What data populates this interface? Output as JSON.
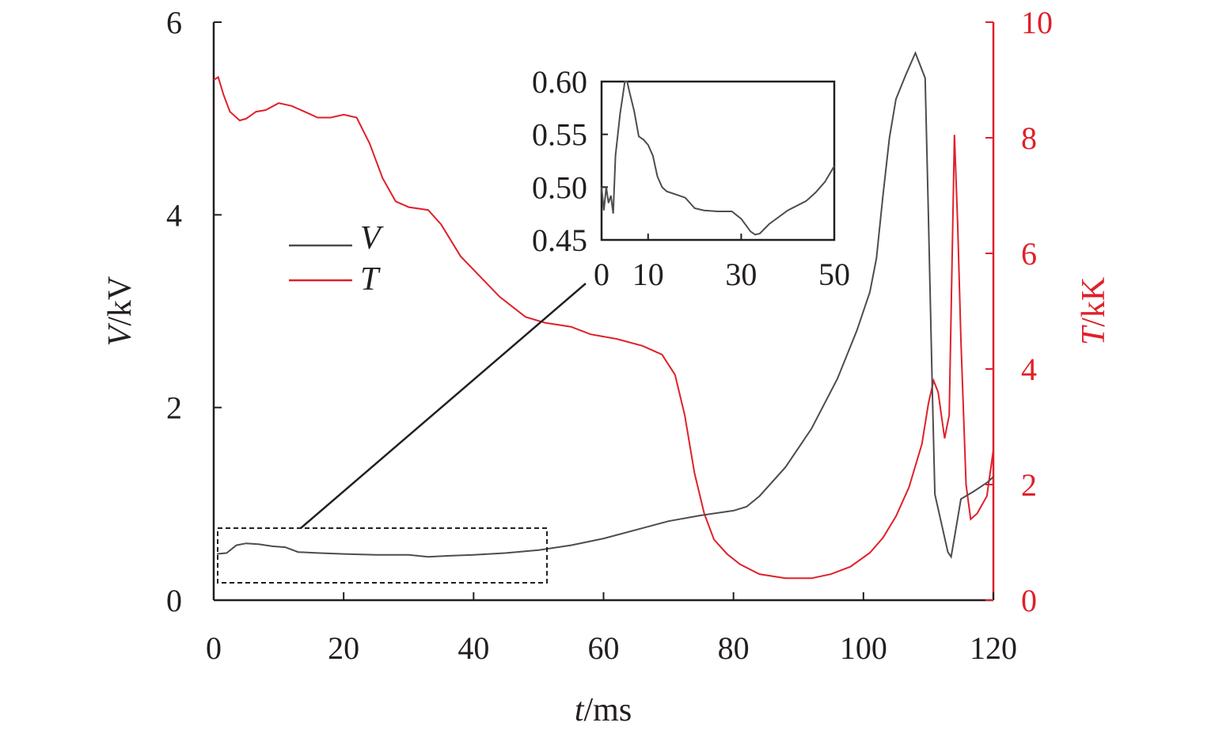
{
  "chart_data": {
    "type": "line",
    "main": {
      "xlabel_var": "t",
      "xlabel_unit": "/ms",
      "ylabel_left_var": "V",
      "ylabel_left_unit": "/kV",
      "ylabel_right_var": "T",
      "ylabel_right_unit": "/kK",
      "xlim": [
        0,
        120
      ],
      "ylim_left": [
        0,
        6
      ],
      "ylim_right": [
        0,
        10
      ],
      "x_ticks": [
        "0",
        "20",
        "40",
        "60",
        "80",
        "100",
        "120"
      ],
      "y_left_ticks": [
        "0",
        "2",
        "4",
        "6"
      ],
      "y_right_ticks": [
        "0",
        "2",
        "4",
        "6",
        "8",
        "10"
      ],
      "grid": false,
      "legend_position": "upper-left",
      "series": [
        {
          "name": "V",
          "axis": "left",
          "color": "#4d4d4f",
          "points": [
            [
              0.5,
              0.48
            ],
            [
              2,
              0.49
            ],
            [
              3.5,
              0.57
            ],
            [
              5,
              0.59
            ],
            [
              7,
              0.58
            ],
            [
              9,
              0.56
            ],
            [
              11,
              0.55
            ],
            [
              13,
              0.5
            ],
            [
              16,
              0.49
            ],
            [
              20,
              0.48
            ],
            [
              25,
              0.47
            ],
            [
              30,
              0.47
            ],
            [
              33,
              0.45
            ],
            [
              36,
              0.46
            ],
            [
              40,
              0.47
            ],
            [
              45,
              0.49
            ],
            [
              50,
              0.52
            ],
            [
              55,
              0.57
            ],
            [
              60,
              0.64
            ],
            [
              65,
              0.73
            ],
            [
              70,
              0.82
            ],
            [
              75,
              0.88
            ],
            [
              80,
              0.93
            ],
            [
              82,
              0.97
            ],
            [
              84,
              1.08
            ],
            [
              88,
              1.38
            ],
            [
              92,
              1.78
            ],
            [
              96,
              2.3
            ],
            [
              99,
              2.8
            ],
            [
              101,
              3.2
            ],
            [
              102,
              3.55
            ],
            [
              103,
              4.2
            ],
            [
              104,
              4.8
            ],
            [
              105,
              5.2
            ],
            [
              106.5,
              5.45
            ],
            [
              108,
              5.68
            ],
            [
              109.5,
              5.42
            ],
            [
              110,
              4.0
            ],
            [
              110.6,
              2.2
            ],
            [
              111,
              1.1
            ],
            [
              112,
              0.8
            ],
            [
              113,
              0.5
            ],
            [
              113.5,
              0.45
            ],
            [
              114,
              0.65
            ],
            [
              115,
              1.05
            ],
            [
              117,
              1.13
            ],
            [
              119,
              1.22
            ],
            [
              120,
              1.28
            ]
          ]
        },
        {
          "name": "T",
          "axis": "right",
          "color": "#e0202a",
          "points": [
            [
              0,
              9.0
            ],
            [
              0.7,
              9.05
            ],
            [
              1.5,
              8.75
            ],
            [
              2.5,
              8.45
            ],
            [
              4,
              8.3
            ],
            [
              5,
              8.33
            ],
            [
              6.5,
              8.45
            ],
            [
              8,
              8.48
            ],
            [
              10,
              8.6
            ],
            [
              12,
              8.55
            ],
            [
              14,
              8.45
            ],
            [
              16,
              8.35
            ],
            [
              18,
              8.35
            ],
            [
              20,
              8.4
            ],
            [
              22,
              8.35
            ],
            [
              24,
              7.9
            ],
            [
              26,
              7.3
            ],
            [
              28,
              6.9
            ],
            [
              30,
              6.8
            ],
            [
              33,
              6.75
            ],
            [
              35,
              6.5
            ],
            [
              38,
              5.95
            ],
            [
              41,
              5.6
            ],
            [
              44,
              5.25
            ],
            [
              48,
              4.9
            ],
            [
              51,
              4.8
            ],
            [
              55,
              4.73
            ],
            [
              58,
              4.6
            ],
            [
              62,
              4.52
            ],
            [
              66,
              4.4
            ],
            [
              69,
              4.25
            ],
            [
              71,
              3.9
            ],
            [
              72.5,
              3.2
            ],
            [
              74,
              2.2
            ],
            [
              75.5,
              1.5
            ],
            [
              77,
              1.05
            ],
            [
              79,
              0.8
            ],
            [
              81,
              0.62
            ],
            [
              84,
              0.45
            ],
            [
              88,
              0.38
            ],
            [
              92,
              0.38
            ],
            [
              95,
              0.45
            ],
            [
              98,
              0.58
            ],
            [
              101,
              0.82
            ],
            [
              103,
              1.08
            ],
            [
              105,
              1.45
            ],
            [
              107,
              1.95
            ],
            [
              109,
              2.7
            ],
            [
              110,
              3.4
            ],
            [
              110.8,
              3.8
            ],
            [
              111.5,
              3.6
            ],
            [
              112.5,
              2.8
            ],
            [
              113.2,
              3.2
            ],
            [
              114,
              8.05
            ],
            [
              114.5,
              6.5
            ],
            [
              115,
              4.5
            ],
            [
              115.8,
              2.0
            ],
            [
              116.5,
              1.4
            ],
            [
              117.5,
              1.5
            ],
            [
              119,
              1.8
            ],
            [
              120,
              2.6
            ]
          ]
        }
      ]
    },
    "inset": {
      "type": "line",
      "xlim": [
        0,
        50
      ],
      "ylim": [
        0.45,
        0.6
      ],
      "x_ticks": [
        "0",
        "10",
        "30",
        "50"
      ],
      "y_ticks": [
        "0.60",
        "0.55",
        "0.50",
        "0.45"
      ],
      "series": [
        {
          "name": "V",
          "color": "#4d4d4f",
          "points": [
            [
              0,
              0.5
            ],
            [
              0.5,
              0.478
            ],
            [
              1.0,
              0.5
            ],
            [
              1.5,
              0.485
            ],
            [
              2,
              0.492
            ],
            [
              2.5,
              0.475
            ],
            [
              3,
              0.53
            ],
            [
              4,
              0.57
            ],
            [
              4.5,
              0.585
            ],
            [
              5,
              0.6
            ],
            [
              5.5,
              0.6
            ],
            [
              6,
              0.59
            ],
            [
              7,
              0.572
            ],
            [
              8,
              0.548
            ],
            [
              9,
              0.545
            ],
            [
              10,
              0.54
            ],
            [
              11,
              0.53
            ],
            [
              12,
              0.51
            ],
            [
              13,
              0.5
            ],
            [
              14,
              0.496
            ],
            [
              16,
              0.493
            ],
            [
              18,
              0.49
            ],
            [
              20,
              0.48
            ],
            [
              22,
              0.478
            ],
            [
              25,
              0.477
            ],
            [
              28,
              0.477
            ],
            [
              30,
              0.47
            ],
            [
              32,
              0.458
            ],
            [
              33,
              0.455
            ],
            [
              34,
              0.456
            ],
            [
              36,
              0.465
            ],
            [
              40,
              0.478
            ],
            [
              44,
              0.487
            ],
            [
              46,
              0.495
            ],
            [
              48,
              0.505
            ],
            [
              50,
              0.52
            ]
          ]
        }
      ]
    },
    "legend": [
      {
        "label": "V",
        "color": "#4d4d4f"
      },
      {
        "label": "T",
        "color": "#e0202a"
      }
    ]
  }
}
